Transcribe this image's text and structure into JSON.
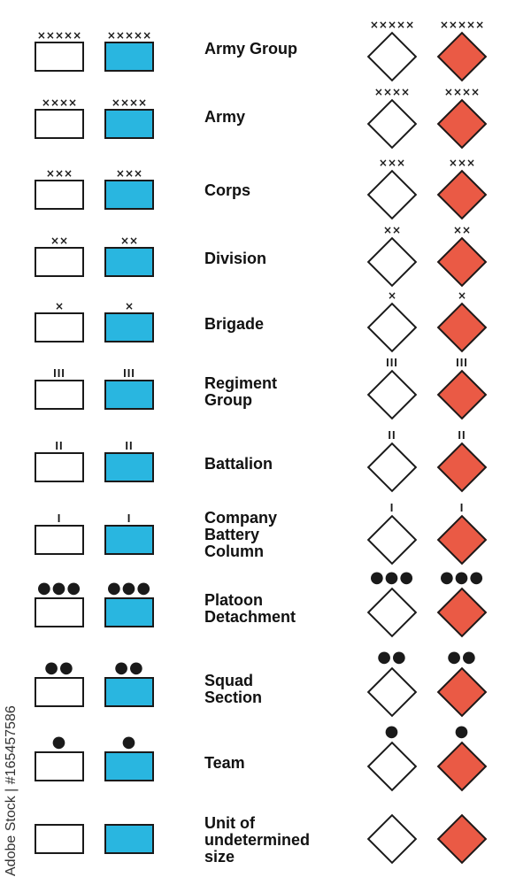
{
  "colors": {
    "friendly_fill": "#29b6e0",
    "hostile_fill": "#ea5a45",
    "outline": "#1a1a1a"
  },
  "rows": [
    {
      "label": "Army Group",
      "modifier": "×××××"
    },
    {
      "label": "Army",
      "modifier": "××××"
    },
    {
      "label": "Corps",
      "modifier": "×××"
    },
    {
      "label": "Division",
      "modifier": "××"
    },
    {
      "label": "Brigade",
      "modifier": "×"
    },
    {
      "label": "Regiment\nGroup",
      "modifier": "III"
    },
    {
      "label": "Battalion",
      "modifier": "II"
    },
    {
      "label": "Company\nBattery\nColumn",
      "modifier": "I"
    },
    {
      "label": "Platoon\nDetachment",
      "modifier": "●●●"
    },
    {
      "label": "Squad\nSection",
      "modifier": "●●"
    },
    {
      "label": "Team",
      "modifier": "●"
    },
    {
      "label": "Unit of\nundetermined\nsize",
      "modifier": ""
    }
  ],
  "watermark": "Adobe Stock | #165457586"
}
